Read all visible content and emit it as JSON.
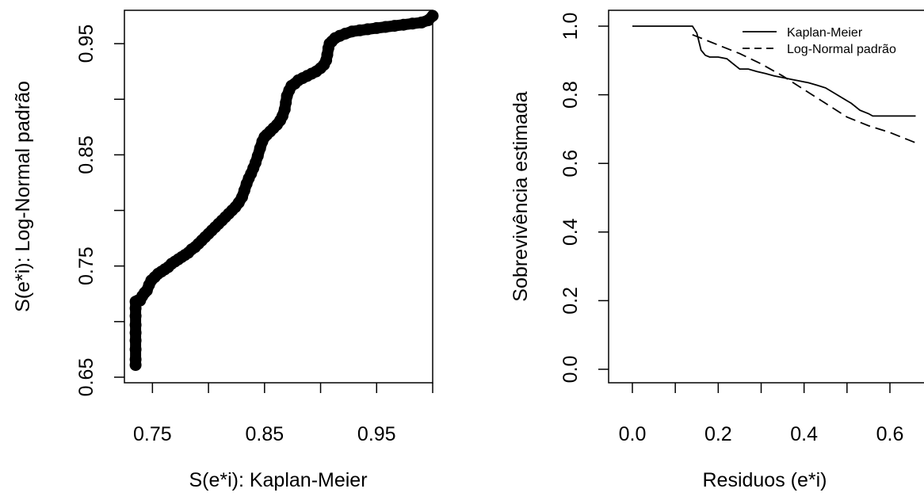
{
  "chart_data": [
    {
      "type": "scatter",
      "xlabel": "S(e*i): Kaplan-Meier",
      "ylabel": "S(e*i): Log-Normal padrão",
      "xlim": [
        0.725,
        1.0
      ],
      "ylim": [
        0.645,
        0.98
      ],
      "x_ticks": [
        0.75,
        0.8,
        0.85,
        0.9,
        0.95,
        1.0
      ],
      "x_tick_labels": [
        "0.75",
        "",
        "0.85",
        "",
        "0.95",
        ""
      ],
      "y_ticks": [
        0.65,
        0.7,
        0.75,
        0.8,
        0.85,
        0.9,
        0.95
      ],
      "y_tick_labels": [
        "0.65",
        "",
        "0.75",
        "",
        "0.85",
        "",
        "0.95"
      ],
      "marker_color": "#000000",
      "points": [
        [
          0.735,
          0.661
        ],
        [
          0.735,
          0.666
        ],
        [
          0.735,
          0.675
        ],
        [
          0.735,
          0.683
        ],
        [
          0.735,
          0.69
        ],
        [
          0.735,
          0.697
        ],
        [
          0.735,
          0.705
        ],
        [
          0.735,
          0.712
        ],
        [
          0.735,
          0.718
        ],
        [
          0.737,
          0.719
        ],
        [
          0.739,
          0.719
        ],
        [
          0.741,
          0.723
        ],
        [
          0.743,
          0.726
        ],
        [
          0.745,
          0.728
        ],
        [
          0.747,
          0.733
        ],
        [
          0.749,
          0.737
        ],
        [
          0.752,
          0.74
        ],
        [
          0.755,
          0.743
        ],
        [
          0.758,
          0.745
        ],
        [
          0.761,
          0.747
        ],
        [
          0.764,
          0.749
        ],
        [
          0.767,
          0.752
        ],
        [
          0.77,
          0.754
        ],
        [
          0.773,
          0.756
        ],
        [
          0.776,
          0.758
        ],
        [
          0.779,
          0.76
        ],
        [
          0.782,
          0.762
        ],
        [
          0.785,
          0.765
        ],
        [
          0.788,
          0.767
        ],
        [
          0.791,
          0.77
        ],
        [
          0.794,
          0.773
        ],
        [
          0.797,
          0.776
        ],
        [
          0.8,
          0.779
        ],
        [
          0.803,
          0.782
        ],
        [
          0.806,
          0.785
        ],
        [
          0.809,
          0.788
        ],
        [
          0.812,
          0.791
        ],
        [
          0.815,
          0.794
        ],
        [
          0.818,
          0.797
        ],
        [
          0.821,
          0.8
        ],
        [
          0.824,
          0.803
        ],
        [
          0.827,
          0.807
        ],
        [
          0.83,
          0.812
        ],
        [
          0.832,
          0.818
        ],
        [
          0.834,
          0.824
        ],
        [
          0.836,
          0.829
        ],
        [
          0.838,
          0.833
        ],
        [
          0.84,
          0.838
        ],
        [
          0.842,
          0.843
        ],
        [
          0.844,
          0.849
        ],
        [
          0.846,
          0.856
        ],
        [
          0.848,
          0.862
        ],
        [
          0.85,
          0.866
        ],
        [
          0.852,
          0.868
        ],
        [
          0.855,
          0.871
        ],
        [
          0.858,
          0.874
        ],
        [
          0.861,
          0.877
        ],
        [
          0.864,
          0.881
        ],
        [
          0.866,
          0.885
        ],
        [
          0.868,
          0.891
        ],
        [
          0.869,
          0.897
        ],
        [
          0.87,
          0.903
        ],
        [
          0.872,
          0.908
        ],
        [
          0.874,
          0.912
        ],
        [
          0.877,
          0.914
        ],
        [
          0.88,
          0.917
        ],
        [
          0.884,
          0.919
        ],
        [
          0.888,
          0.921
        ],
        [
          0.892,
          0.923
        ],
        [
          0.896,
          0.925
        ],
        [
          0.9,
          0.928
        ],
        [
          0.903,
          0.931
        ],
        [
          0.905,
          0.935
        ],
        [
          0.906,
          0.94
        ],
        [
          0.907,
          0.946
        ],
        [
          0.908,
          0.95
        ],
        [
          0.91,
          0.952
        ],
        [
          0.913,
          0.955
        ],
        [
          0.917,
          0.957
        ],
        [
          0.922,
          0.959
        ],
        [
          0.928,
          0.961
        ],
        [
          0.935,
          0.962
        ],
        [
          0.942,
          0.963
        ],
        [
          0.95,
          0.964
        ],
        [
          0.958,
          0.965
        ],
        [
          0.966,
          0.966
        ],
        [
          0.974,
          0.967
        ],
        [
          0.982,
          0.968
        ],
        [
          0.99,
          0.969
        ],
        [
          0.996,
          0.971
        ],
        [
          1.0,
          0.975
        ]
      ]
    },
    {
      "type": "line",
      "xlabel": "Residuos (e*i)",
      "ylabel": "Sobrevivência estimada",
      "xlim": [
        -0.02,
        0.68
      ],
      "ylim": [
        -0.04,
        1.04
      ],
      "x_ticks": [
        0.0,
        0.1,
        0.2,
        0.3,
        0.4,
        0.5,
        0.6
      ],
      "x_tick_labels": [
        "0.0",
        "",
        "0.2",
        "",
        "0.4",
        "",
        "0.6"
      ],
      "y_ticks": [
        0.0,
        0.2,
        0.4,
        0.6,
        0.8,
        1.0
      ],
      "y_tick_labels": [
        "0.0",
        "0.2",
        "0.4",
        "0.6",
        "0.8",
        "1.0"
      ],
      "legend": {
        "placement": "top-right",
        "entries": [
          "Kaplan-Meier",
          "Log-Normal padrão"
        ]
      },
      "series": [
        {
          "name": "Kaplan-Meier",
          "style": "solid",
          "points": [
            [
              0.0,
              1.0
            ],
            [
              0.14,
              1.0
            ],
            [
              0.15,
              0.98
            ],
            [
              0.155,
              0.955
            ],
            [
              0.16,
              0.93
            ],
            [
              0.17,
              0.915
            ],
            [
              0.18,
              0.91
            ],
            [
              0.2,
              0.91
            ],
            [
              0.22,
              0.905
            ],
            [
              0.23,
              0.895
            ],
            [
              0.24,
              0.885
            ],
            [
              0.25,
              0.875
            ],
            [
              0.27,
              0.875
            ],
            [
              0.29,
              0.868
            ],
            [
              0.31,
              0.862
            ],
            [
              0.33,
              0.855
            ],
            [
              0.35,
              0.85
            ],
            [
              0.37,
              0.845
            ],
            [
              0.39,
              0.84
            ],
            [
              0.41,
              0.835
            ],
            [
              0.43,
              0.828
            ],
            [
              0.45,
              0.82
            ],
            [
              0.47,
              0.805
            ],
            [
              0.49,
              0.79
            ],
            [
              0.51,
              0.775
            ],
            [
              0.53,
              0.755
            ],
            [
              0.55,
              0.745
            ],
            [
              0.56,
              0.738
            ],
            [
              0.58,
              0.738
            ],
            [
              0.6,
              0.738
            ],
            [
              0.66,
              0.738
            ]
          ]
        },
        {
          "name": "Log-Normal padrão",
          "style": "dashed",
          "points": [
            [
              0.14,
              0.975
            ],
            [
              0.2,
              0.945
            ],
            [
              0.25,
              0.92
            ],
            [
              0.3,
              0.89
            ],
            [
              0.35,
              0.855
            ],
            [
              0.4,
              0.815
            ],
            [
              0.45,
              0.775
            ],
            [
              0.5,
              0.735
            ],
            [
              0.55,
              0.71
            ],
            [
              0.6,
              0.69
            ],
            [
              0.66,
              0.66
            ]
          ]
        }
      ]
    }
  ]
}
